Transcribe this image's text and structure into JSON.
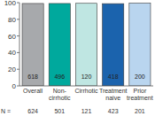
{
  "chart_data": {
    "type": "bar",
    "categories": [
      "Overall",
      "Non-cirrhotic",
      "Cirrhotic",
      "Treatment naive",
      "Prior treatment"
    ],
    "values": [
      99.0,
      99.0,
      99.2,
      98.8,
      99.5
    ],
    "colors": [
      "#a7a9ac",
      "#00a99d",
      "#bfe6e2",
      "#1b63ad",
      "#b9d5ef"
    ],
    "counts": [
      618,
      496,
      120,
      418,
      200
    ],
    "n_label": "N =",
    "n": [
      624,
      501,
      121,
      423,
      201
    ],
    "ylim": [
      0,
      100
    ],
    "yticks": [
      0,
      20,
      40,
      60,
      80,
      100
    ],
    "grid": false
  }
}
